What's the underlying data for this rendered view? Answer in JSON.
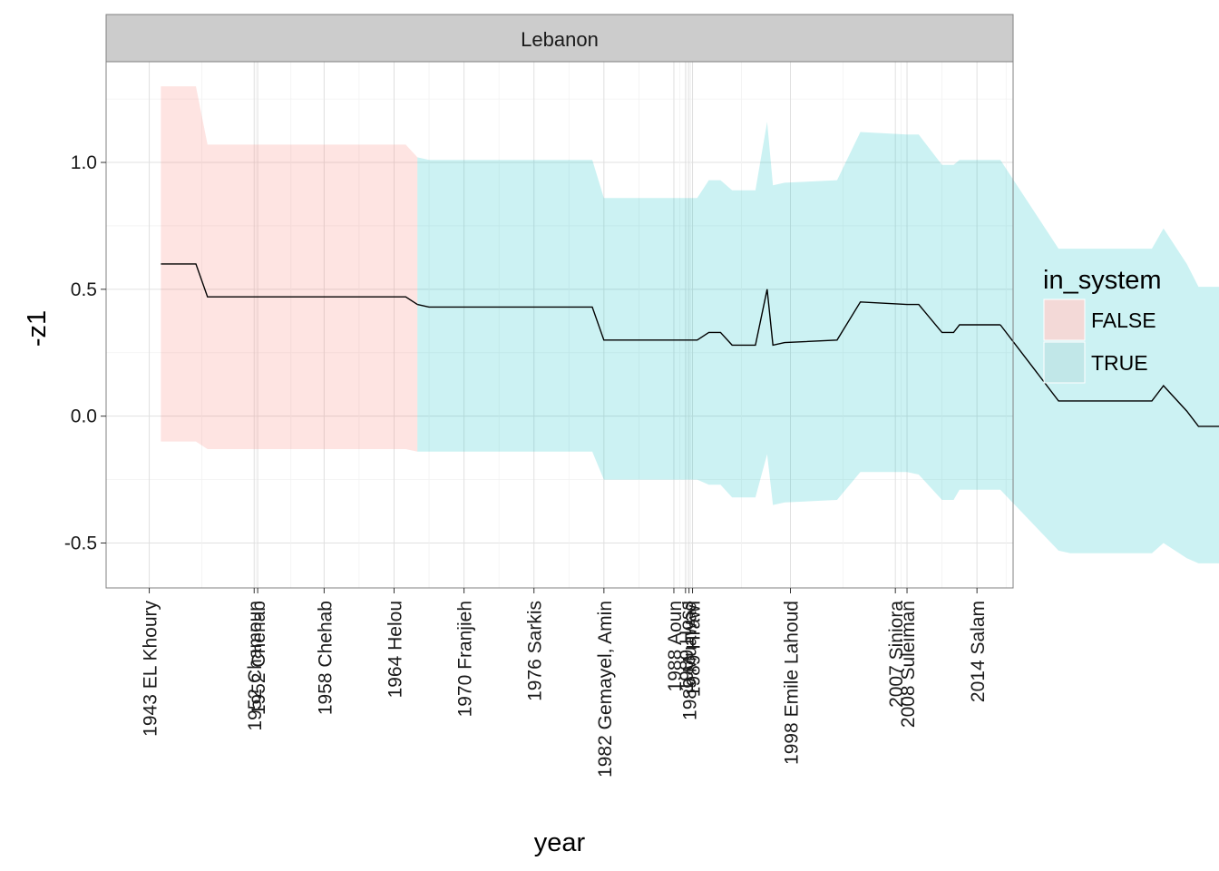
{
  "chart_data": {
    "type": "area",
    "facet_title": "Lebanon",
    "xlabel": "year",
    "ylabel": "-z1",
    "xlim": [
      1939.3,
      2017.1
    ],
    "ylim": [
      -0.677,
      1.397
    ],
    "grid": true,
    "y_ticks": [
      -0.5,
      0.0,
      0.5,
      1.0
    ],
    "y_tick_labels": [
      "-0.5",
      "0.0",
      "0.5",
      "1.0"
    ],
    "x_ticks": [
      {
        "year": 1943,
        "label": "1943 EL Khoury"
      },
      {
        "year": 1952,
        "label": "1952 Chamoun"
      },
      {
        "year": 1952.3,
        "label": "1952 Chehab"
      },
      {
        "year": 1958,
        "label": "1958 Chehab"
      },
      {
        "year": 1964,
        "label": "1964 Helou"
      },
      {
        "year": 1970,
        "label": "1970 Franjieh"
      },
      {
        "year": 1976,
        "label": "1976 Sarkis"
      },
      {
        "year": 1982,
        "label": "1982 Gemayel, Amin"
      },
      {
        "year": 1988,
        "label": "1988 Aoun"
      },
      {
        "year": 1989,
        "label": "1989 Hoss"
      },
      {
        "year": 1989.3,
        "label": "1989 Muawad"
      },
      {
        "year": 1989.6,
        "label": "1989 Hrawi"
      },
      {
        "year": 1998,
        "label": "1998 Emile Lahoud"
      },
      {
        "year": 2007,
        "label": "2007 Siniora"
      },
      {
        "year": 2008,
        "label": "2008 Suleiman"
      },
      {
        "year": 2014,
        "label": "2014 Salam"
      }
    ],
    "legend": {
      "title": "in_system",
      "position": "right",
      "entries": [
        {
          "label": "FALSE",
          "color": "#F8766D"
        },
        {
          "label": "TRUE",
          "color": "#00BFC4"
        }
      ]
    },
    "series": [
      {
        "name": "FALSE",
        "color": "#F8766D",
        "x": [
          1944,
          1947,
          1948,
          1958,
          1963,
          1965,
          1966
        ],
        "y": [
          0.6,
          0.6,
          0.47,
          0.47,
          0.47,
          0.47,
          0.44
        ],
        "upper": [
          1.3,
          1.3,
          1.07,
          1.07,
          1.07,
          1.07,
          1.02
        ],
        "lower": [
          -0.1,
          -0.1,
          -0.13,
          -0.13,
          -0.13,
          -0.13,
          -0.14
        ]
      },
      {
        "name": "TRUE",
        "color": "#00BFC4",
        "x": [
          1966,
          1967,
          1970,
          1975,
          1976,
          1981,
          1982,
          1982.5,
          1983,
          1984,
          1986,
          1987,
          1988,
          1990,
          1991,
          1992,
          1993,
          1994,
          1995,
          1996,
          1996.5,
          1997.5,
          2002,
          2004,
          2008,
          2009,
          2011,
          2012,
          2012.5,
          2013,
          2014,
          2015,
          2016
        ],
        "y": [
          0.44,
          0.43,
          0.43,
          0.43,
          0.43,
          0.43,
          0.3,
          0.3,
          0.3,
          0.3,
          0.3,
          0.3,
          0.3,
          0.3,
          0.33,
          0.33,
          0.28,
          0.28,
          0.28,
          0.5,
          0.28,
          0.29,
          0.3,
          0.45,
          0.44,
          0.44,
          0.33,
          0.33,
          0.36,
          0.36,
          0.36,
          0.36,
          0.36
        ],
        "upper": [
          1.02,
          1.01,
          1.01,
          1.01,
          1.01,
          1.01,
          0.86,
          0.86,
          0.86,
          0.86,
          0.86,
          0.86,
          0.86,
          0.86,
          0.93,
          0.93,
          0.89,
          0.89,
          0.89,
          1.16,
          0.91,
          0.92,
          0.93,
          1.12,
          1.11,
          1.11,
          0.99,
          0.99,
          1.01,
          1.01,
          1.01,
          1.01,
          1.01
        ],
        "lower": [
          -0.14,
          -0.14,
          -0.14,
          -0.14,
          -0.14,
          -0.14,
          -0.25,
          -0.25,
          -0.25,
          -0.25,
          -0.25,
          -0.25,
          -0.25,
          -0.25,
          -0.27,
          -0.27,
          -0.32,
          -0.32,
          -0.32,
          -0.15,
          -0.35,
          -0.34,
          -0.33,
          -0.22,
          -0.22,
          -0.23,
          -0.33,
          -0.33,
          -0.29,
          -0.29,
          -0.29,
          -0.29,
          -0.29
        ]
      },
      {
        "name": "TRUE",
        "color": "#00BFC4",
        "x": [
          2016,
          2021,
          2022,
          2028,
          2029,
          2030,
          2032,
          2033,
          2036,
          2037,
          2040
        ],
        "y": [
          0.36,
          0.06,
          0.06,
          0.06,
          0.06,
          0.12,
          0.02,
          -0.04,
          -0.04,
          -0.04,
          0.0
        ],
        "upper": [
          1.01,
          0.66,
          0.66,
          0.66,
          0.66,
          0.74,
          0.6,
          0.51,
          0.51,
          0.51,
          0.56
        ],
        "lower": [
          -0.29,
          -0.53,
          -0.54,
          -0.54,
          -0.54,
          -0.5,
          -0.56,
          -0.58,
          -0.58,
          -0.58,
          -0.55
        ]
      }
    ]
  }
}
